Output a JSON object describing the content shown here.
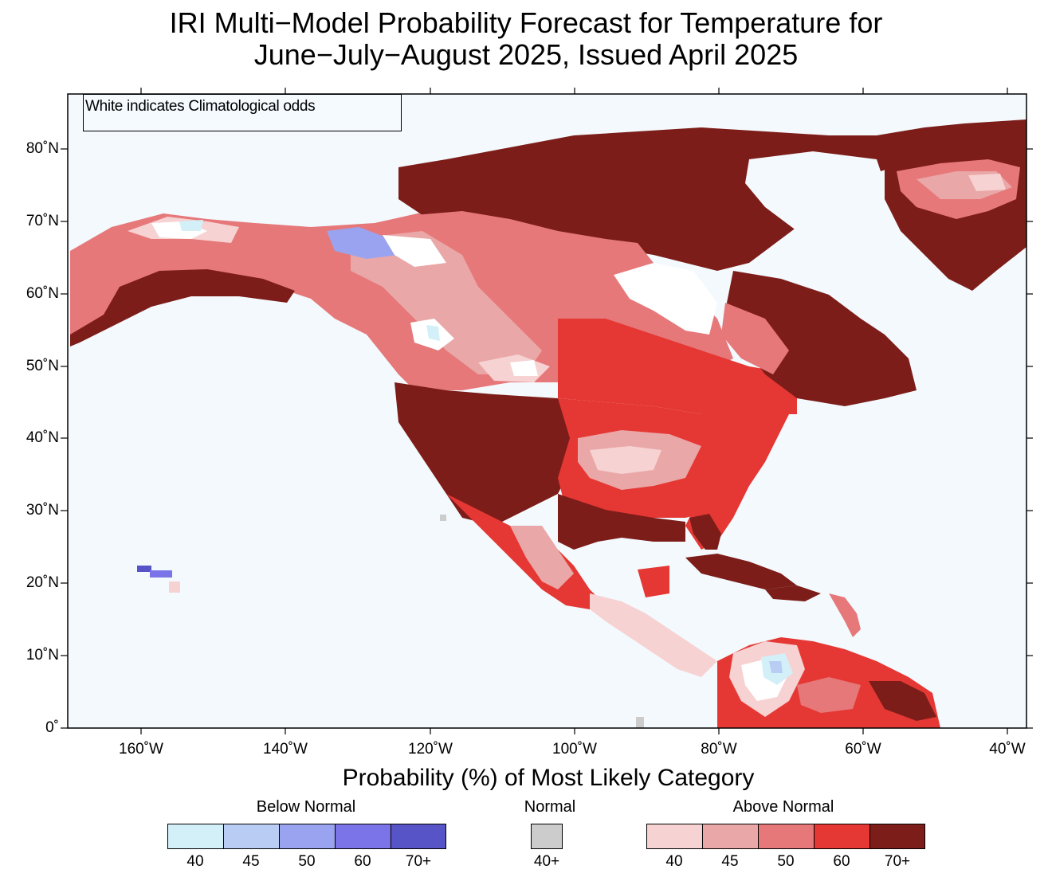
{
  "title": {
    "line1": "IRI Multi−Model Probability Forecast for Temperature for",
    "line2": "June−July−August 2025, Issued April 2025"
  },
  "note": "White indicates Climatological odds",
  "lat_labels": [
    "80˚N",
    "70˚N",
    "60˚N",
    "50˚N",
    "40˚N",
    "30˚N",
    "20˚N",
    "10˚N",
    "0˚"
  ],
  "lon_labels": [
    "160˚W",
    "140˚W",
    "120˚W",
    "100˚W",
    "80˚W",
    "60˚W",
    "40˚W"
  ],
  "legend": {
    "title": "Probability (%) of Most Likely Category",
    "below": {
      "label": "Below Normal",
      "colors": [
        "#d3f0f8",
        "#b9cdf4",
        "#9aa3ef",
        "#7a74e8",
        "#5654c6"
      ],
      "ticks": [
        "40",
        "45",
        "50",
        "60",
        "70+"
      ]
    },
    "normal": {
      "label": "Normal",
      "colors": [
        "#cccccc"
      ],
      "ticks": [
        "40+"
      ]
    },
    "above": {
      "label": "Above Normal",
      "colors": [
        "#f7d2d2",
        "#eaa7a7",
        "#e6787a",
        "#e53834",
        "#7d1d19"
      ],
      "ticks": [
        "40",
        "45",
        "50",
        "60",
        "70+"
      ]
    }
  },
  "colors": {
    "ocean": "#f3f9fd",
    "climatology": "#ffffff"
  }
}
